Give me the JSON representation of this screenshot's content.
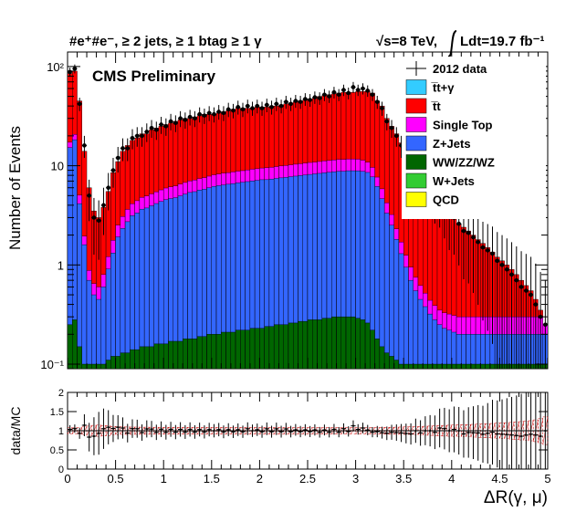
{
  "chart_data": [
    {
      "type": "bar",
      "stacked": true,
      "title": "#e⁺#e⁻, ≥ 2 jets, ≥ 1 btag ≥ 1 γ",
      "energy_label": "√s=8 TeV,",
      "lumi_label": "Ldt=19.7 fb⁻¹",
      "preliminary": "CMS Preliminary",
      "ylabel": "Number of Events",
      "y_scale": "log",
      "ylim": [
        0.09,
        140
      ],
      "xlim": [
        0,
        5
      ],
      "y_ticks": [
        "10⁻¹",
        "1",
        "10",
        "10²"
      ],
      "legend_position": "top-right",
      "legend": [
        {
          "name": "2012 data",
          "kind": "data"
        },
        {
          "name": "t̅t+γ",
          "color": "#33ccff"
        },
        {
          "name": "t̅t",
          "color": "#ff0000"
        },
        {
          "name": "Single Top",
          "color": "#ff00ff"
        },
        {
          "name": "Z+Jets",
          "color": "#3366ff"
        },
        {
          "name": "WW/ZZ/WZ",
          "color": "#006600"
        },
        {
          "name": "W+Jets",
          "color": "#33cc33"
        },
        {
          "name": "QCD",
          "color": "#ffff00"
        }
      ],
      "bin_edges_approx": {
        "start": 0.0,
        "end": 5.0,
        "n_bins": 100
      },
      "bin_centers_x": [
        0.025,
        0.075,
        0.125,
        0.175,
        0.225,
        0.275,
        0.325,
        0.375,
        0.425,
        0.475,
        0.525,
        0.575,
        0.625,
        0.675,
        0.725,
        0.775,
        0.825,
        0.875,
        0.925,
        0.975,
        1.025,
        1.075,
        1.125,
        1.175,
        1.225,
        1.275,
        1.325,
        1.375,
        1.425,
        1.475,
        1.525,
        1.575,
        1.625,
        1.675,
        1.725,
        1.775,
        1.825,
        1.875,
        1.925,
        1.975,
        2.025,
        2.075,
        2.125,
        2.175,
        2.225,
        2.275,
        2.325,
        2.375,
        2.425,
        2.475,
        2.525,
        2.575,
        2.625,
        2.675,
        2.725,
        2.775,
        2.825,
        2.875,
        2.925,
        2.975,
        3.025,
        3.075,
        3.125,
        3.175,
        3.225,
        3.275,
        3.325,
        3.375,
        3.425,
        3.475,
        3.525,
        3.575,
        3.625,
        3.675,
        3.725,
        3.775,
        3.825,
        3.875,
        3.925,
        3.975,
        4.025,
        4.075,
        4.125,
        4.175,
        4.225,
        4.275,
        4.325,
        4.375,
        4.425,
        4.475,
        4.525,
        4.575,
        4.625,
        4.675,
        4.725,
        4.775,
        4.825,
        4.875,
        4.925,
        4.975
      ],
      "mc_total": [
        85,
        90,
        45,
        14,
        6,
        3.5,
        3,
        3.8,
        5.5,
        8.5,
        11,
        14,
        16,
        18,
        19,
        21,
        21,
        23,
        24,
        25,
        26,
        27,
        28,
        29,
        30,
        30,
        31,
        32,
        33,
        33,
        33,
        34,
        35,
        36,
        37,
        38,
        38,
        38,
        38,
        39,
        39,
        39,
        40,
        40,
        41,
        42,
        43,
        44,
        45,
        46,
        47,
        48,
        50,
        51,
        52,
        53,
        54,
        55,
        55,
        55,
        56,
        56,
        56,
        54,
        45,
        40,
        30,
        25,
        21,
        17,
        14,
        12,
        10,
        8.5,
        7,
        6,
        5,
        4.2,
        3.6,
        3.2,
        2.9,
        2.6,
        2.4,
        2.2,
        2.0,
        1.8,
        1.65,
        1.5,
        1.35,
        1.2,
        1.1,
        1.0,
        0.9,
        0.8,
        0.7,
        0.62,
        0.55,
        0.45,
        0.35,
        0.25
      ],
      "z_jets": [
        15,
        18,
        4,
        1.5,
        0.6,
        0.4,
        0.35,
        0.5,
        0.8,
        1.2,
        1.8,
        2.2,
        2.6,
        3,
        3.2,
        3.5,
        3.6,
        3.8,
        4,
        4.2,
        4.4,
        4.5,
        4.6,
        4.8,
        5,
        5.2,
        5.3,
        5.5,
        5.6,
        5.8,
        6,
        6.1,
        6.2,
        6.3,
        6.4,
        6.5,
        6.6,
        6.7,
        6.8,
        6.9,
        7,
        7,
        7.1,
        7.2,
        7.3,
        7.4,
        7.5,
        7.6,
        7.7,
        7.8,
        7.9,
        8,
        8.1,
        8.2,
        8.3,
        8.4,
        8.5,
        8.5,
        8.6,
        8.6,
        8.6,
        8.5,
        8.3,
        7.5,
        6,
        4.5,
        3.2,
        2.4,
        1.7,
        1.2,
        0.85,
        0.6,
        0.45,
        0.35,
        0.28,
        0.22,
        0.18,
        0.15,
        0.13,
        0.12,
        0.11,
        0.1,
        0.1,
        0.1,
        0.1,
        0.1,
        0.1,
        0.1,
        0.1,
        0.1,
        0.1,
        0.1,
        0.1,
        0.1,
        0.1,
        0.1,
        0.1,
        0.1,
        0.1,
        0.1
      ],
      "single_top": [
        2,
        2.4,
        0.9,
        0.35,
        0.18,
        0.15,
        0.15,
        0.2,
        0.3,
        0.45,
        0.6,
        0.75,
        0.9,
        1,
        1.1,
        1.15,
        1.2,
        1.25,
        1.3,
        1.35,
        1.4,
        1.45,
        1.5,
        1.55,
        1.6,
        1.65,
        1.7,
        1.75,
        1.8,
        1.85,
        1.9,
        1.95,
        2,
        2,
        2.05,
        2.1,
        2.1,
        2.15,
        2.2,
        2.2,
        2.25,
        2.3,
        2.3,
        2.35,
        2.4,
        2.4,
        2.45,
        2.5,
        2.5,
        2.55,
        2.6,
        2.6,
        2.65,
        2.7,
        2.7,
        2.75,
        2.8,
        2.8,
        2.8,
        2.8,
        2.75,
        2.6,
        2.3,
        1.9,
        1.5,
        1.2,
        0.9,
        0.7,
        0.5,
        0.4,
        0.3,
        0.25,
        0.2,
        0.17,
        0.14,
        0.12,
        0.11,
        0.1,
        0.1,
        0.1,
        0.1,
        0.1,
        0.1,
        0.1,
        0.1,
        0.1,
        0.1,
        0.1,
        0.1,
        0.1,
        0.1,
        0.1,
        0.1,
        0.1,
        0.1,
        0.1,
        0.1,
        0.1,
        0.1,
        0.1
      ],
      "diboson": [
        0.25,
        0.28,
        0.15,
        0.1,
        0.1,
        0.1,
        0.1,
        0.1,
        0.11,
        0.12,
        0.12,
        0.13,
        0.13,
        0.14,
        0.14,
        0.15,
        0.15,
        0.15,
        0.16,
        0.16,
        0.16,
        0.17,
        0.17,
        0.17,
        0.18,
        0.18,
        0.18,
        0.19,
        0.19,
        0.2,
        0.2,
        0.2,
        0.21,
        0.21,
        0.21,
        0.22,
        0.22,
        0.22,
        0.23,
        0.23,
        0.23,
        0.24,
        0.24,
        0.25,
        0.25,
        0.25,
        0.26,
        0.26,
        0.27,
        0.27,
        0.28,
        0.28,
        0.28,
        0.29,
        0.29,
        0.3,
        0.3,
        0.3,
        0.3,
        0.3,
        0.29,
        0.28,
        0.26,
        0.22,
        0.18,
        0.15,
        0.13,
        0.12,
        0.11,
        0.1,
        0.1,
        0.1,
        0.1,
        0.1,
        0.1,
        0.1,
        0.1,
        0.1,
        0.1,
        0.1,
        0.1,
        0.1,
        0.1,
        0.1,
        0.1,
        0.1,
        0.1,
        0.1,
        0.1,
        0.1,
        0.1,
        0.1,
        0.1,
        0.1,
        0.1,
        0.1,
        0.1,
        0.1,
        0.1,
        0.1
      ],
      "data_points": [
        88,
        95,
        42,
        16,
        5,
        3,
        2.8,
        4,
        6,
        9,
        12,
        15,
        15,
        19,
        20,
        20,
        22,
        24,
        23,
        26,
        25,
        28,
        27,
        30,
        29,
        31,
        30,
        33,
        32,
        34,
        33,
        35,
        34,
        37,
        36,
        39,
        37,
        40,
        38,
        40,
        38,
        41,
        39,
        42,
        40,
        44,
        42,
        45,
        44,
        47,
        46,
        49,
        48,
        52,
        50,
        55,
        52,
        58,
        54,
        62,
        58,
        60,
        57,
        52,
        44,
        38,
        28,
        24,
        20,
        16,
        13,
        11,
        10,
        8,
        7,
        6,
        4.8,
        4.5,
        3.8,
        3.2,
        3,
        2.6,
        2.2,
        2.1,
        1.9,
        1.7,
        1.5,
        1.4,
        1.3,
        1.1,
        1.0,
        0.9,
        0.8,
        0.7,
        0.6,
        0.55,
        0.5,
        0.4,
        0.3,
        0.25
      ]
    },
    {
      "type": "scatter",
      "ylabel": "data/MC",
      "xlabel": "ΔR(γ, μ)",
      "xlim": [
        0,
        5
      ],
      "ylim": [
        0,
        2
      ],
      "x_ticks": [
        "0",
        "0.5",
        "1",
        "1.5",
        "2",
        "2.5",
        "3",
        "3.5",
        "4",
        "4.5",
        "5"
      ],
      "y_ticks": [
        "0",
        "0.5",
        "1",
        "1.5",
        "2"
      ],
      "reference_line": 1,
      "uncertainty_band_color": "#cc0000"
    }
  ]
}
